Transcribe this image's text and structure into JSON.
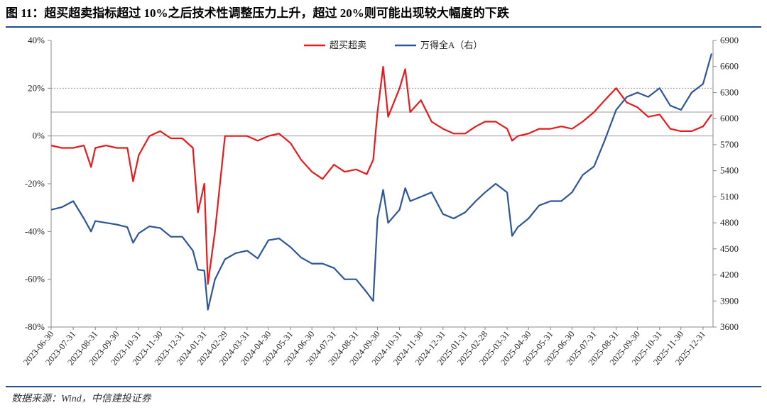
{
  "chart_data": {
    "type": "line",
    "title": "图 11：超买超卖指标超过 10%之后技术性调整压力上升，超过 20%则可能出现较大幅度的下跌",
    "source": "数据来源：Wind，中信建投证券",
    "x": [
      "2023-06-30",
      "2023-07-15",
      "2023-07-31",
      "2023-08-15",
      "2023-08-25",
      "2023-08-31",
      "2023-09-15",
      "2023-09-30",
      "2023-10-15",
      "2023-10-23",
      "2023-10-31",
      "2023-11-15",
      "2023-11-30",
      "2023-12-15",
      "2023-12-31",
      "2024-01-15",
      "2024-01-22",
      "2024-01-31",
      "2024-02-05",
      "2024-02-15",
      "2024-02-29",
      "2024-03-15",
      "2024-03-31",
      "2024-04-15",
      "2024-04-30",
      "2024-05-15",
      "2024-05-31",
      "2024-06-15",
      "2024-06-30",
      "2024-07-15",
      "2024-07-31",
      "2024-08-15",
      "2024-08-31",
      "2024-09-15",
      "2024-09-24",
      "2024-09-30",
      "2024-10-08",
      "2024-10-15",
      "2024-10-31",
      "2024-11-08",
      "2024-11-15",
      "2024-11-30",
      "2024-12-15",
      "2024-12-31",
      "2025-01-15",
      "2025-01-31",
      "2025-02-15",
      "2025-02-28",
      "2025-03-15",
      "2025-03-31",
      "2025-04-07",
      "2025-04-15",
      "2025-04-30",
      "2025-05-15",
      "2025-05-31",
      "2025-06-15",
      "2025-06-30",
      "2025-07-15",
      "2025-07-31",
      "2025-08-15",
      "2025-08-31",
      "2025-09-15",
      "2025-09-30",
      "2025-10-15",
      "2025-10-31",
      "2025-11-15",
      "2025-11-30",
      "2025-12-15",
      "2025-12-31",
      "2026-01-12"
    ],
    "series": [
      {
        "name": "超买超卖",
        "color": "#e8191c",
        "values": [
          -4,
          -5,
          -5,
          -4,
          -13,
          -5,
          -4,
          -5,
          -5,
          -19,
          -8,
          0,
          2,
          -1,
          -1,
          -5,
          -32,
          -20,
          -62,
          -40,
          0,
          0,
          0,
          -2,
          0,
          1,
          -3,
          -10,
          -15,
          -18,
          -12,
          -15,
          -14,
          -16,
          -10,
          10,
          29,
          8,
          20,
          28,
          10,
          15,
          6,
          3,
          1,
          1,
          4,
          6,
          6,
          3,
          -2,
          0,
          1,
          3,
          3,
          4,
          3,
          6,
          10,
          15,
          20,
          14,
          12,
          8,
          9,
          3,
          2,
          2,
          4,
          9
        ]
      },
      {
        "name": "万得全A（右）",
        "color": "#2e5597",
        "axis": "y2",
        "values": [
          4950,
          4980,
          5050,
          4850,
          4700,
          4820,
          4800,
          4780,
          4750,
          4570,
          4680,
          4760,
          4740,
          4640,
          4640,
          4480,
          4260,
          4250,
          3800,
          4150,
          4380,
          4450,
          4480,
          4390,
          4600,
          4620,
          4520,
          4400,
          4330,
          4330,
          4280,
          4150,
          4150,
          4000,
          3900,
          4850,
          5180,
          4800,
          4950,
          5200,
          5050,
          5100,
          5150,
          4900,
          4850,
          4920,
          5050,
          5150,
          5250,
          5150,
          4650,
          4750,
          4850,
          5000,
          5050,
          5050,
          5150,
          5350,
          5450,
          5750,
          6100,
          6250,
          6300,
          6250,
          6350,
          6150,
          6100,
          6300,
          6400,
          6750
        ]
      }
    ],
    "xlim": [
      "2023-06-30",
      "2026-01-14"
    ],
    "xticks": [
      "2023-06-30",
      "2023-07-31",
      "2023-08-31",
      "2023-09-30",
      "2023-10-31",
      "2023-11-30",
      "2023-12-31",
      "2024-01-31",
      "2024-02-29",
      "2024-03-31",
      "2024-04-30",
      "2024-05-31",
      "2024-06-30",
      "2024-07-31",
      "2024-08-31",
      "2024-09-30",
      "2024-10-31",
      "2024-11-30",
      "2024-12-31",
      "2025-01-31",
      "2025-02-28",
      "2025-03-31",
      "2025-04-30",
      "2025-05-31",
      "2025-06-30",
      "2025-07-31",
      "2025-08-31",
      "2025-09-30",
      "2025-10-31",
      "2025-11-30",
      "2025-12-31"
    ],
    "ylim": [
      -80,
      40
    ],
    "yticks": [
      {
        "value": -80,
        "label": "-80%"
      },
      {
        "value": -60,
        "label": "-60%"
      },
      {
        "value": -40,
        "label": "-40%"
      },
      {
        "value": -20,
        "label": "-20%"
      },
      {
        "value": 0,
        "label": "0%"
      },
      {
        "value": 20,
        "label": "20%"
      },
      {
        "value": 40,
        "label": "40%"
      }
    ],
    "y2lim": [
      3600,
      6900
    ],
    "y2ticks": [
      3600,
      3900,
      4200,
      4500,
      4800,
      5100,
      5400,
      5700,
      6000,
      6300,
      6600,
      6900
    ],
    "reference_lines": [
      0,
      10,
      20
    ],
    "legend": "top"
  }
}
